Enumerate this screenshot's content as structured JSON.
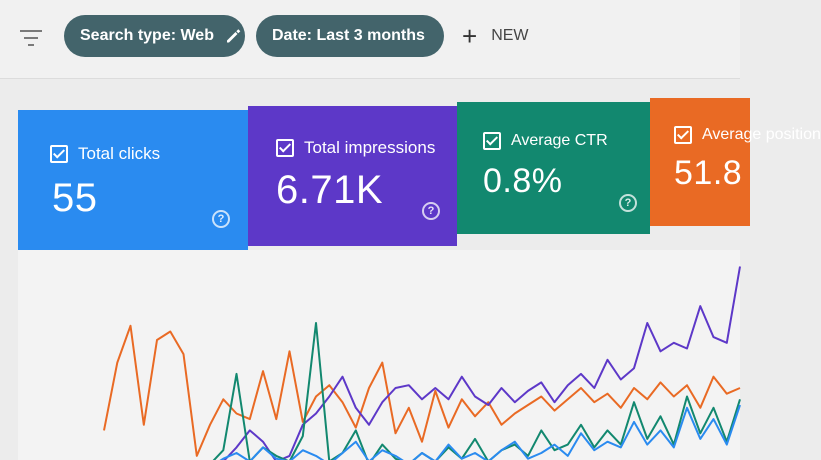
{
  "toolbar": {
    "filter_icon": "filter-icon",
    "chip_search_label": "Search type: Web",
    "chip_date_label": "Date: Last 3 months",
    "new_label": "NEW",
    "chip_color": "#43646b"
  },
  "cards": [
    {
      "label": "Total clicks",
      "value": "55",
      "color": "#2a8bf0"
    },
    {
      "label": "Total impressions",
      "value": "6.71K",
      "color": "#5d38c8"
    },
    {
      "label": "Average CTR",
      "value": "0.8%",
      "color": "#12886f"
    },
    {
      "label": "Average position",
      "value": "51.8",
      "color": "#e96a24"
    }
  ],
  "chart_data": {
    "type": "line",
    "series": [
      {
        "color": "#e96a24",
        "values": [
          1.4,
          3.8,
          5.1,
          1.6,
          4.6,
          4.9,
          4.1,
          0.5,
          1.6,
          2.5,
          2.0,
          1.8,
          3.5,
          1.8,
          4.2,
          1.7,
          2.6,
          3.0,
          2.4,
          1.5,
          2.9,
          3.8,
          1.3,
          2.2,
          1.0,
          2.8,
          1.5,
          2.5,
          1.9,
          2.4,
          1.6,
          2.0,
          2.3,
          2.6,
          2.1,
          2.5,
          2.9,
          2.4,
          2.7,
          2.2,
          2.9,
          2.5,
          3.1,
          2.6,
          3.0,
          2.2,
          3.3,
          2.7,
          2.9
        ]
      },
      {
        "color": "#5d38c8",
        "values": [
          0.0,
          0.0,
          0.0,
          0.0,
          0.0,
          0.0,
          0.0,
          0.0,
          0.0,
          0.3,
          0.8,
          1.4,
          1.0,
          0.3,
          0.5,
          1.6,
          2.0,
          2.6,
          3.3,
          2.2,
          1.6,
          2.4,
          2.9,
          3.0,
          2.5,
          2.9,
          2.5,
          3.3,
          2.6,
          2.3,
          2.9,
          2.4,
          2.8,
          3.1,
          2.4,
          3.0,
          3.4,
          2.9,
          3.9,
          3.2,
          3.6,
          5.2,
          4.2,
          4.5,
          4.3,
          5.8,
          4.7,
          4.5,
          7.2
        ]
      },
      {
        "color": "#12886f",
        "values": [
          0.0,
          0.0,
          0.0,
          0.0,
          0.0,
          0.0,
          0.0,
          0.0,
          0.2,
          0.7,
          3.4,
          0.3,
          0.8,
          0.5,
          0.3,
          1.2,
          5.2,
          0.3,
          0.6,
          1.4,
          0.2,
          0.9,
          0.4,
          0.2,
          0.6,
          0.3,
          0.8,
          0.4,
          1.1,
          0.3,
          0.7,
          0.9,
          0.5,
          1.4,
          0.7,
          0.9,
          1.6,
          0.8,
          1.4,
          0.9,
          2.4,
          1.1,
          1.9,
          0.9,
          2.6,
          1.3,
          2.2,
          1.0,
          2.5
        ]
      },
      {
        "color": "#2a8bf0",
        "values": [
          0.0,
          0.0,
          0.0,
          0.0,
          0.0,
          0.0,
          0.0,
          0.0,
          0.1,
          0.4,
          0.6,
          0.3,
          0.8,
          0.4,
          0.3,
          0.7,
          0.5,
          0.2,
          0.6,
          1.0,
          0.3,
          0.7,
          0.5,
          0.2,
          0.6,
          0.3,
          0.9,
          0.4,
          0.6,
          0.3,
          0.7,
          1.0,
          0.4,
          0.6,
          0.9,
          0.5,
          1.3,
          0.7,
          1.0,
          0.8,
          1.7,
          0.9,
          1.4,
          0.8,
          2.2,
          1.1,
          1.8,
          0.9,
          2.3
        ]
      }
    ],
    "ylim": [
      0,
      7.5
    ],
    "grid": false
  }
}
